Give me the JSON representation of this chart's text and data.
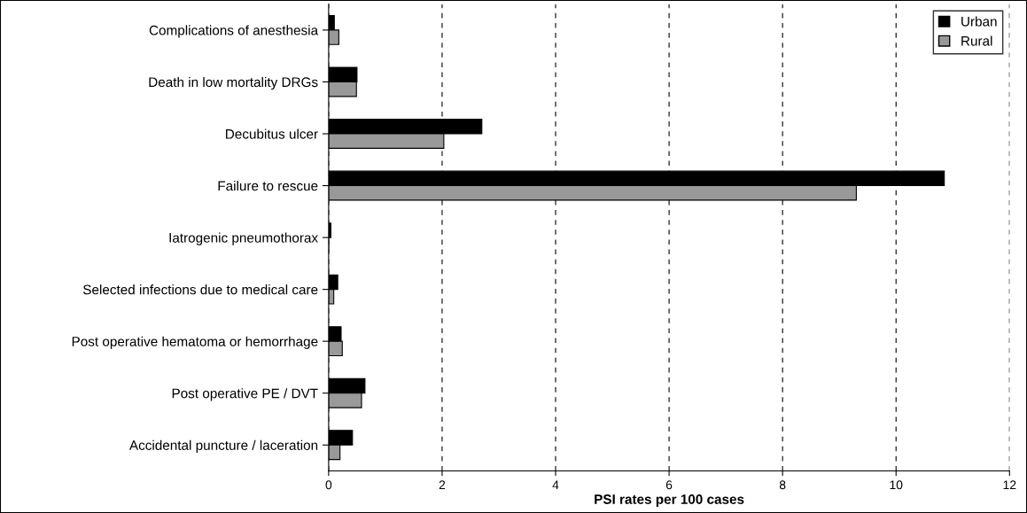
{
  "chart_data": {
    "type": "bar",
    "orientation": "horizontal",
    "xlabel": "PSI rates per 100 cases",
    "categories": [
      "Complications of anesthesia",
      "Death in low mortality DRGs",
      "Decubitus ulcer",
      "Failure to rescue",
      "Iatrogenic pneumothorax",
      "Selected infections due to medical care",
      "Post operative hematoma or hemorrhage",
      "Post operative PE / DVT",
      "Accidental puncture / laceration"
    ],
    "series": [
      {
        "name": "Urban",
        "color": "#000000",
        "values": [
          0.1,
          0.5,
          2.7,
          10.85,
          0.04,
          0.16,
          0.22,
          0.64,
          0.42
        ]
      },
      {
        "name": "Rural",
        "color": "#999999",
        "values": [
          0.18,
          0.49,
          2.03,
          9.3,
          0,
          0.09,
          0.24,
          0.58,
          0.2
        ]
      }
    ],
    "xlim": [
      0,
      12
    ],
    "xticks": [
      0,
      2,
      4,
      6,
      8,
      10,
      12
    ],
    "grid": "x",
    "line_style": "dashed",
    "legend": "top right"
  }
}
